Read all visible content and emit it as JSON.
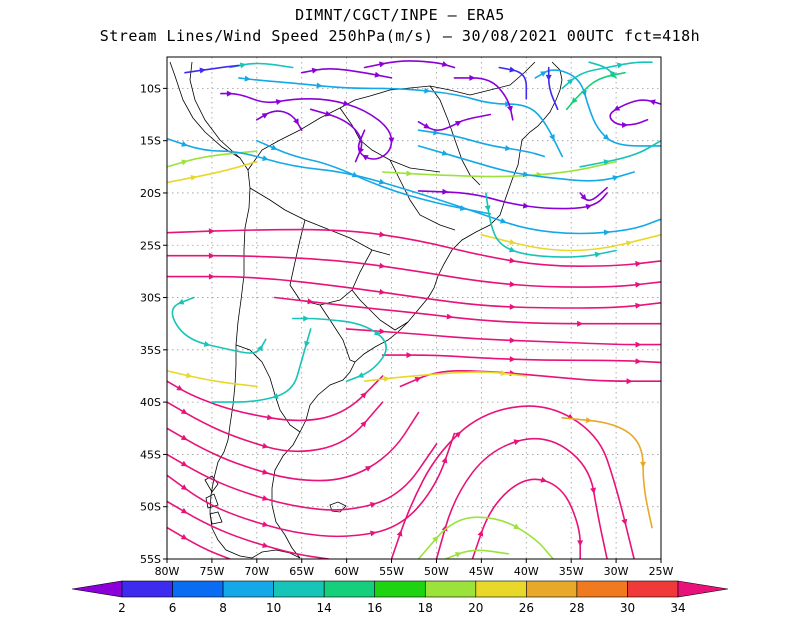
{
  "header": {
    "line1": "DIMNT/CGCT/INPE  –  ERA5",
    "line2": "Stream Lines/Wind Speed 250hPa(m/s) –  30/08/2021 00UTC fct=418h"
  },
  "map": {
    "lon_range": [
      -80,
      -25
    ],
    "lat_range": [
      -55,
      -7
    ],
    "lon_ticks": [
      "80W",
      "75W",
      "70W",
      "65W",
      "60W",
      "55W",
      "50W",
      "45W",
      "40W",
      "35W",
      "30W",
      "25W"
    ],
    "lat_ticks": [
      "10S",
      "15S",
      "20S",
      "25S",
      "30S",
      "35S",
      "40S",
      "45S",
      "50S",
      "55S"
    ]
  },
  "colorbar": {
    "labels": [
      "2",
      "6",
      "8",
      "10",
      "14",
      "16",
      "18",
      "20",
      "26",
      "28",
      "30",
      "34"
    ],
    "colors": [
      "#8b00d8",
      "#3d2cf0",
      "#0a6cf2",
      "#15a8e8",
      "#17c4b8",
      "#16cf7c",
      "#1ed412",
      "#9be33a",
      "#e8d82a",
      "#e8a82a",
      "#f07a20",
      "#f03a3a",
      "#e8127a"
    ]
  },
  "streamlines": [
    {
      "color": "#e8127a",
      "points": [
        [
          -80,
          -23.8
        ],
        [
          -70,
          -23.5
        ],
        [
          -60,
          -23.5
        ],
        [
          -52,
          -24.5
        ],
        [
          -45,
          -26
        ],
        [
          -38,
          -27
        ],
        [
          -30,
          -27
        ],
        [
          -25,
          -26.5
        ]
      ]
    },
    {
      "color": "#e8127a",
      "points": [
        [
          -80,
          -26
        ],
        [
          -70,
          -26
        ],
        [
          -60,
          -26.5
        ],
        [
          -52,
          -27.5
        ],
        [
          -45,
          -28.5
        ],
        [
          -38,
          -29
        ],
        [
          -30,
          -29
        ],
        [
          -25,
          -28.5
        ]
      ]
    },
    {
      "color": "#e8127a",
      "points": [
        [
          -80,
          -28
        ],
        [
          -70,
          -28
        ],
        [
          -60,
          -29
        ],
        [
          -52,
          -30
        ],
        [
          -45,
          -30.8
        ],
        [
          -38,
          -31
        ],
        [
          -30,
          -31
        ],
        [
          -25,
          -30.5
        ]
      ]
    },
    {
      "color": "#e8127a",
      "points": [
        [
          -68,
          -30
        ],
        [
          -60,
          -30.8
        ],
        [
          -52,
          -31.5
        ],
        [
          -45,
          -32.2
        ],
        [
          -38,
          -32.5
        ],
        [
          -30,
          -32.5
        ],
        [
          -25,
          -32.5
        ]
      ]
    },
    {
      "color": "#e8127a",
      "points": [
        [
          -60,
          -33
        ],
        [
          -52,
          -33.5
        ],
        [
          -45,
          -34
        ],
        [
          -38,
          -34.2
        ],
        [
          -30,
          -34.5
        ],
        [
          -25,
          -34.5
        ]
      ]
    },
    {
      "color": "#e8127a",
      "points": [
        [
          -56,
          -35.5
        ],
        [
          -50,
          -35.5
        ],
        [
          -45,
          -35.8
        ],
        [
          -38,
          -36
        ],
        [
          -30,
          -36
        ],
        [
          -25,
          -36.2
        ]
      ]
    },
    {
      "color": "#e8127a",
      "points": [
        [
          -54,
          -38.5
        ],
        [
          -50,
          -37
        ],
        [
          -45,
          -37
        ],
        [
          -38,
          -37.5
        ],
        [
          -32,
          -38
        ],
        [
          -25,
          -38
        ]
      ]
    },
    {
      "color": "#e8127a",
      "points": [
        [
          -80,
          -38
        ],
        [
          -77,
          -39.5
        ],
        [
          -72,
          -41
        ],
        [
          -65,
          -42
        ],
        [
          -60,
          -41
        ],
        [
          -56,
          -37.5
        ]
      ]
    },
    {
      "color": "#e8127a",
      "points": [
        [
          -80,
          -40
        ],
        [
          -76,
          -42
        ],
        [
          -72,
          -43.5
        ],
        [
          -66,
          -45
        ],
        [
          -60,
          -44
        ],
        [
          -56,
          -40
        ]
      ]
    },
    {
      "color": "#e8127a",
      "points": [
        [
          -80,
          -42.5
        ],
        [
          -76,
          -44.5
        ],
        [
          -72,
          -46
        ],
        [
          -66,
          -47.5
        ],
        [
          -60,
          -47.5
        ],
        [
          -55,
          -45
        ],
        [
          -52,
          -41
        ]
      ]
    },
    {
      "color": "#e8127a",
      "points": [
        [
          -80,
          -45
        ],
        [
          -76,
          -47
        ],
        [
          -72,
          -48.5
        ],
        [
          -66,
          -50
        ],
        [
          -60,
          -50.5
        ],
        [
          -54,
          -49
        ],
        [
          -50,
          -44
        ]
      ]
    },
    {
      "color": "#e8127a",
      "points": [
        [
          -80,
          -47
        ],
        [
          -76,
          -49.5
        ],
        [
          -72,
          -51
        ],
        [
          -66,
          -52.5
        ],
        [
          -60,
          -53
        ],
        [
          -54,
          -52
        ],
        [
          -50,
          -48
        ],
        [
          -48,
          -43
        ]
      ]
    },
    {
      "color": "#e8127a",
      "points": [
        [
          -80,
          -49.5
        ],
        [
          -76,
          -51.5
        ],
        [
          -72,
          -53
        ],
        [
          -66,
          -54.5
        ],
        [
          -62,
          -55
        ]
      ]
    },
    {
      "color": "#e8127a",
      "points": [
        [
          -80,
          -52
        ],
        [
          -76,
          -54
        ],
        [
          -73,
          -55
        ]
      ]
    },
    {
      "color": "#e8127a",
      "points": [
        [
          -55,
          -55
        ],
        [
          -53,
          -50
        ],
        [
          -50,
          -45
        ],
        [
          -45,
          -41
        ],
        [
          -38,
          -40
        ],
        [
          -32,
          -43
        ],
        [
          -30,
          -48
        ],
        [
          -28,
          -55
        ]
      ]
    },
    {
      "color": "#e8127a",
      "points": [
        [
          -50,
          -55
        ],
        [
          -48,
          -49
        ],
        [
          -44,
          -44.5
        ],
        [
          -38,
          -43
        ],
        [
          -33,
          -46
        ],
        [
          -32,
          -51
        ],
        [
          -31,
          -55
        ]
      ]
    },
    {
      "color": "#e8127a",
      "points": [
        [
          -46,
          -55
        ],
        [
          -44,
          -50
        ],
        [
          -40,
          -47
        ],
        [
          -36,
          -48
        ],
        [
          -34,
          -52
        ],
        [
          -34,
          -55
        ]
      ]
    },
    {
      "color": "#9be33a",
      "points": [
        [
          -52,
          -55
        ],
        [
          -48,
          -51
        ],
        [
          -43,
          -51
        ],
        [
          -39,
          -53
        ],
        [
          -37,
          -55
        ]
      ]
    },
    {
      "color": "#9be33a",
      "points": [
        [
          -49,
          -55
        ],
        [
          -46,
          -54
        ],
        [
          -42,
          -54.5
        ]
      ]
    },
    {
      "color": "#e8a82a",
      "points": [
        [
          -36,
          -41.5
        ],
        [
          -30,
          -42
        ],
        [
          -27,
          -44
        ],
        [
          -27,
          -48
        ],
        [
          -26,
          -52
        ]
      ]
    },
    {
      "color": "#e8d82a",
      "points": [
        [
          -58,
          -38
        ],
        [
          -53,
          -37.5
        ],
        [
          -45,
          -37
        ],
        [
          -40,
          -37.5
        ]
      ]
    },
    {
      "color": "#e8d82a",
      "points": [
        [
          -80,
          -37
        ],
        [
          -75,
          -38
        ],
        [
          -70,
          -38.5
        ]
      ]
    },
    {
      "color": "#e8d82a",
      "points": [
        [
          -80,
          -19
        ],
        [
          -74,
          -18
        ],
        [
          -70,
          -17
        ]
      ]
    },
    {
      "color": "#e8d82a",
      "points": [
        [
          -45,
          -24
        ],
        [
          -38,
          -25.5
        ],
        [
          -32,
          -25.5
        ],
        [
          -25,
          -24
        ]
      ]
    },
    {
      "color": "#9be33a",
      "points": [
        [
          -80,
          -17.5
        ],
        [
          -76,
          -16.5
        ],
        [
          -70,
          -16
        ]
      ]
    },
    {
      "color": "#9be33a",
      "points": [
        [
          -56,
          -18
        ],
        [
          -50,
          -18.3
        ],
        [
          -42,
          -18.5
        ],
        [
          -35,
          -18
        ],
        [
          -30,
          -17
        ]
      ]
    },
    {
      "color": "#17c4b8",
      "points": [
        [
          -77,
          -30
        ],
        [
          -80,
          -31
        ],
        [
          -78,
          -34
        ],
        [
          -73,
          -35
        ],
        [
          -70,
          -35.5
        ],
        [
          -69,
          -34
        ]
      ]
    },
    {
      "color": "#17c4b8",
      "points": [
        [
          -66,
          -32
        ],
        [
          -63,
          -32
        ],
        [
          -58,
          -32.5
        ],
        [
          -55,
          -34.5
        ],
        [
          -57,
          -37
        ],
        [
          -60,
          -38
        ]
      ]
    },
    {
      "color": "#17c4b8",
      "points": [
        [
          -64,
          -33
        ],
        [
          -65,
          -36
        ],
        [
          -66,
          -39
        ],
        [
          -70,
          -40
        ],
        [
          -75,
          -40
        ]
      ]
    },
    {
      "color": "#15a8e8",
      "points": [
        [
          -80,
          -14.8
        ],
        [
          -76,
          -16
        ],
        [
          -72,
          -16
        ],
        [
          -66,
          -17.5
        ],
        [
          -60,
          -18
        ],
        [
          -52,
          -20
        ],
        [
          -45,
          -22
        ],
        [
          -40,
          -23.5
        ],
        [
          -34,
          -24
        ],
        [
          -28,
          -23.5
        ],
        [
          -25,
          -22.5
        ]
      ]
    },
    {
      "color": "#15a8e8",
      "points": [
        [
          -70,
          -15
        ],
        [
          -66,
          -16.5
        ],
        [
          -62,
          -17.2
        ],
        [
          -56,
          -19.5
        ],
        [
          -50,
          -21
        ],
        [
          -44,
          -22
        ]
      ]
    },
    {
      "color": "#15a8e8",
      "points": [
        [
          -72,
          -9
        ],
        [
          -70,
          -9.2
        ],
        [
          -66,
          -9.5
        ],
        [
          -60,
          -10
        ],
        [
          -54,
          -10
        ],
        [
          -48,
          -10.5
        ],
        [
          -44,
          -11.5
        ],
        [
          -40,
          -11.5
        ],
        [
          -38,
          -13
        ],
        [
          -36,
          -16.5
        ]
      ]
    },
    {
      "color": "#15a8e8",
      "points": [
        [
          -52,
          -14
        ],
        [
          -48,
          -14.5
        ],
        [
          -44,
          -15.5
        ],
        [
          -40,
          -16
        ],
        [
          -38,
          -16.5
        ]
      ]
    },
    {
      "color": "#15a8e8",
      "points": [
        [
          -52,
          -15.5
        ],
        [
          -46,
          -17
        ],
        [
          -42,
          -18
        ],
        [
          -38,
          -18.5
        ],
        [
          -32,
          -19
        ],
        [
          -28,
          -18
        ]
      ]
    },
    {
      "color": "#15a8e8",
      "points": [
        [
          -39,
          -9
        ],
        [
          -37,
          -8
        ],
        [
          -34,
          -9
        ],
        [
          -33,
          -12
        ],
        [
          -32,
          -14
        ],
        [
          -30,
          -15.5
        ],
        [
          -25,
          -15.5
        ]
      ]
    },
    {
      "color": "#17c4b8",
      "points": [
        [
          -36,
          -10
        ],
        [
          -34,
          -8.5
        ],
        [
          -31,
          -8
        ],
        [
          -28,
          -7.5
        ],
        [
          -26,
          -7.5
        ]
      ]
    },
    {
      "color": "#17c4b8",
      "points": [
        [
          -30,
          -9
        ],
        [
          -31,
          -8
        ],
        [
          -33,
          -7.5
        ]
      ]
    },
    {
      "color": "#17c4b8",
      "points": [
        [
          -73,
          -8
        ],
        [
          -70,
          -7.5
        ],
        [
          -66,
          -8
        ]
      ]
    },
    {
      "color": "#8b00d8",
      "points": [
        [
          -58,
          -8
        ],
        [
          -54,
          -7.3
        ],
        [
          -50,
          -7.5
        ],
        [
          -48,
          -8
        ]
      ]
    },
    {
      "color": "#8b00d8",
      "points": [
        [
          -65,
          -8.5
        ],
        [
          -62,
          -8
        ],
        [
          -58,
          -8.5
        ],
        [
          -55,
          -9
        ]
      ]
    },
    {
      "color": "#8b00d8",
      "points": [
        [
          -74,
          -10.5
        ],
        [
          -72,
          -10.5
        ],
        [
          -69,
          -11.5
        ],
        [
          -66,
          -11
        ],
        [
          -62,
          -11
        ],
        [
          -58,
          -12
        ],
        [
          -55,
          -14
        ],
        [
          -55,
          -16
        ],
        [
          -57,
          -17
        ],
        [
          -59,
          -16
        ],
        [
          -58,
          -14
        ]
      ]
    },
    {
      "color": "#8b00d8",
      "points": [
        [
          -64,
          -12
        ],
        [
          -60,
          -13
        ],
        [
          -58,
          -15
        ],
        [
          -59,
          -17
        ]
      ]
    },
    {
      "color": "#8b00d8",
      "points": [
        [
          -70,
          -13
        ],
        [
          -68,
          -12
        ],
        [
          -66,
          -12.5
        ],
        [
          -65,
          -14
        ]
      ]
    },
    {
      "color": "#8b00d8",
      "points": [
        [
          -52,
          -13.2
        ],
        [
          -50,
          -14.2
        ],
        [
          -48,
          -13.5
        ],
        [
          -47,
          -13
        ],
        [
          -44,
          -12.5
        ]
      ]
    },
    {
      "color": "#8b00d8",
      "points": [
        [
          -48,
          -9
        ],
        [
          -44,
          -9
        ],
        [
          -42,
          -11
        ],
        [
          -41.5,
          -13
        ]
      ]
    },
    {
      "color": "#8b00d8",
      "points": [
        [
          -52,
          -19.8
        ],
        [
          -46,
          -20
        ],
        [
          -42,
          -21
        ],
        [
          -38,
          -21.5
        ],
        [
          -34,
          -21.5
        ],
        [
          -32,
          -21
        ],
        [
          -31,
          -20
        ]
      ]
    },
    {
      "color": "#8b00d8",
      "points": [
        [
          -34,
          -20
        ],
        [
          -33,
          -21
        ],
        [
          -31,
          -19.5
        ]
      ]
    },
    {
      "color": "#8b00d8",
      "points": [
        [
          -25,
          -11.5
        ],
        [
          -27,
          -11
        ],
        [
          -29,
          -11.5
        ],
        [
          -31,
          -12.5
        ],
        [
          -30,
          -13.5
        ],
        [
          -28,
          -13.5
        ],
        [
          -26.5,
          -13
        ]
      ]
    },
    {
      "color": "#3d2cf0",
      "points": [
        [
          -78,
          -8.5
        ],
        [
          -74,
          -8
        ],
        [
          -72,
          -7.8
        ]
      ]
    },
    {
      "color": "#3d2cf0",
      "points": [
        [
          -43,
          -8
        ],
        [
          -40,
          -8.5
        ],
        [
          -40,
          -11
        ]
      ]
    },
    {
      "color": "#3d2cf0",
      "points": [
        [
          -37.5,
          -8
        ],
        [
          -37.5,
          -10
        ],
        [
          -36.5,
          -12
        ]
      ]
    },
    {
      "color": "#16cf7c",
      "points": [
        [
          -29,
          -8.5
        ],
        [
          -32,
          -9
        ],
        [
          -34,
          -10.5
        ],
        [
          -35.5,
          -12
        ]
      ]
    },
    {
      "color": "#17c4b8",
      "points": [
        [
          -44.5,
          -20
        ],
        [
          -44,
          -23
        ],
        [
          -43,
          -25
        ],
        [
          -40,
          -26
        ],
        [
          -34,
          -26.2
        ],
        [
          -30,
          -25.5
        ]
      ]
    },
    {
      "color": "#17c4b8",
      "points": [
        [
          -34,
          -17.5
        ],
        [
          -28,
          -16.5
        ],
        [
          -25,
          -15
        ]
      ]
    }
  ]
}
